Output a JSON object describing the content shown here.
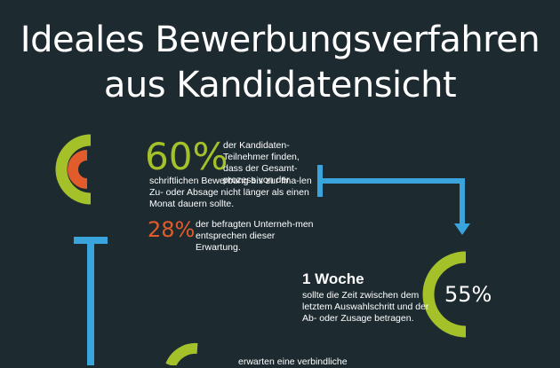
{
  "title": {
    "line1": "Ideales Bewerbungsverfahren",
    "line2": "aus Kandidatensicht"
  },
  "stats": {
    "s60": {
      "value": "60%",
      "text_right": "der Kandidaten-Teilnehmer finden, dass der Gesamt-prozess von der",
      "text_below": "schriftlichen Bewerbung bis zur fina-len Zu- oder Absage nicht länger als einen Monat dauern sollte."
    },
    "s28": {
      "value": "28%",
      "text": "der befragten Unterneh-men entsprechen dieser Erwartung."
    },
    "s55": {
      "heading": "1 Woche",
      "text": "sollte die Zeit zwischen dem letztem Auswahlschritt und der Ab- oder Zusage betragen.",
      "value": "55%"
    },
    "bottom_text": "erwarten eine verbindliche"
  },
  "colors": {
    "background": "#1d2b31",
    "green": "#a4c12a",
    "orange": "#e25b2a",
    "blue": "#3aa5dc"
  }
}
